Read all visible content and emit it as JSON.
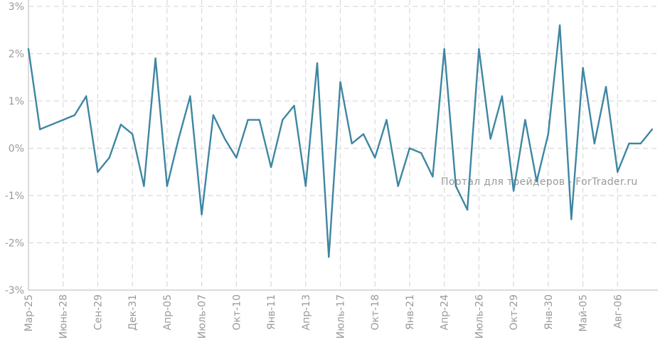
{
  "chart_data": {
    "type": "line",
    "title": "",
    "xlabel": "",
    "ylabel": "",
    "ylim": [
      -3,
      3
    ],
    "y_tick_labels": [
      "3%",
      "2%",
      "1%",
      "0%",
      "-1%",
      "-2%",
      "-3%"
    ],
    "x_tick_labels": [
      "Мар-25",
      "Июнь-28",
      "Сен-29",
      "Дек-31",
      "Апр-05",
      "Июль-07",
      "Окт-10",
      "Янв-11",
      "Апр-13",
      "Июль-17",
      "Окт-18",
      "Янв-21",
      "Апр-24",
      "Июль-26",
      "Окт-29",
      "Янв-30",
      "Май-05",
      "Авг-06"
    ],
    "grid": true,
    "series": [
      {
        "color": "#3e86a2",
        "values": [
          2.1,
          0.4,
          0.5,
          0.6,
          0.7,
          1.1,
          -0.5,
          -0.2,
          0.5,
          0.3,
          -0.8,
          1.9,
          -0.8,
          0.2,
          1.1,
          -1.4,
          0.7,
          0.2,
          -0.2,
          0.6,
          0.6,
          -0.4,
          0.6,
          0.9,
          -0.8,
          1.8,
          -2.3,
          1.4,
          0.1,
          0.3,
          -0.2,
          0.6,
          -0.8,
          0.0,
          -0.1,
          -0.6,
          2.1,
          -0.8,
          -1.3,
          2.1,
          0.2,
          1.1,
          -0.9,
          0.6,
          -0.7,
          0.3,
          2.6,
          -1.5,
          1.7,
          0.1,
          1.3,
          -0.5,
          0.1,
          0.1,
          0.4
        ]
      }
    ]
  },
  "watermark": "Портал для трейдеров - ForTrader.ru"
}
